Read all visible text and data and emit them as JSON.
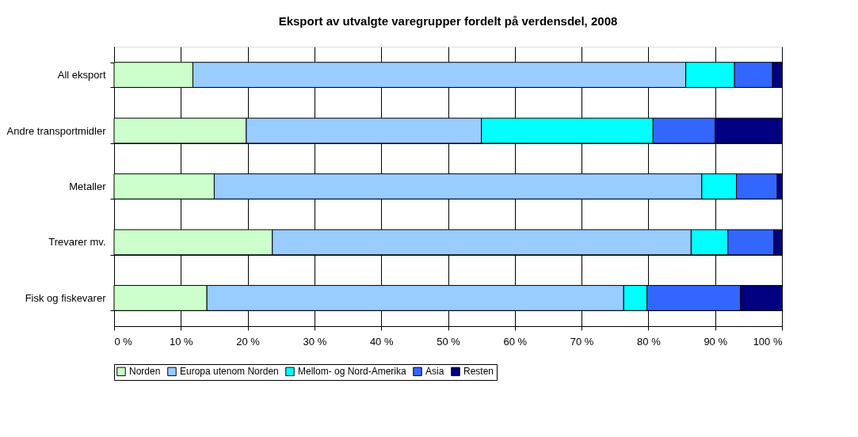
{
  "chart_data": {
    "type": "bar",
    "orientation": "horizontal",
    "stacked": true,
    "title": "Eksport av utvalgte varegrupper fordelt på verdensdel, 2008",
    "categories": [
      "All eksport",
      "Andre transportmidler",
      "Metaller",
      "Trevarer mv.",
      "Fisk og fiskevarer"
    ],
    "series": [
      {
        "name": "Norden",
        "color": "#ccffcc",
        "values": [
          11.8,
          19.8,
          15.0,
          23.7,
          13.9
        ]
      },
      {
        "name": "Europa utenom Norden",
        "color": "#99ccff",
        "values": [
          73.8,
          35.2,
          73.0,
          62.7,
          62.4
        ]
      },
      {
        "name": "Mellom- og Nord-Amerika",
        "color": "#00ffff",
        "values": [
          7.3,
          25.7,
          5.2,
          5.5,
          3.5
        ]
      },
      {
        "name": "Asia",
        "color": "#3366ff",
        "values": [
          5.7,
          9.3,
          6.1,
          6.9,
          14.0
        ]
      },
      {
        "name": "Resten",
        "color": "#000080",
        "values": [
          1.4,
          10.0,
          0.7,
          1.2,
          6.2
        ]
      }
    ],
    "xlim": [
      0,
      100
    ],
    "xticks": [
      {
        "value": 0,
        "label": "0 %"
      },
      {
        "value": 10,
        "label": "10 %"
      },
      {
        "value": 20,
        "label": "20 %"
      },
      {
        "value": 30,
        "label": "30 %"
      },
      {
        "value": 40,
        "label": "40 %"
      },
      {
        "value": 50,
        "label": "50 %"
      },
      {
        "value": 60,
        "label": "60 %"
      },
      {
        "value": 70,
        "label": "70 %"
      },
      {
        "value": 80,
        "label": "80 %"
      },
      {
        "value": 90,
        "label": "90 %"
      },
      {
        "value": 100,
        "label": "100 %"
      }
    ],
    "grid": true,
    "legend": "bottom"
  }
}
